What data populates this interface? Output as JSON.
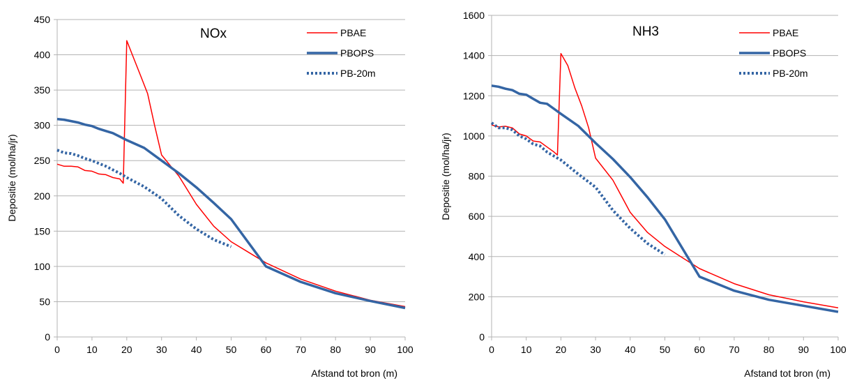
{
  "chart_data": [
    {
      "type": "line",
      "title": "NOx",
      "xlabel": "Afstand tot bron (m)",
      "ylabel": "Depositie (mol/ha/jr)",
      "xlim": [
        0,
        100
      ],
      "ylim": [
        0,
        450
      ],
      "xticks": [
        0,
        10,
        20,
        30,
        40,
        50,
        60,
        70,
        80,
        90,
        100
      ],
      "yticks": [
        0,
        50,
        100,
        150,
        200,
        250,
        300,
        350,
        400,
        450
      ],
      "grid": "horizontal",
      "legend": "top-right",
      "series": [
        {
          "name": "PBAE",
          "color": "#ff0000",
          "style": "solid-thin",
          "x": [
            0,
            2,
            4,
            6,
            8,
            10,
            12,
            14,
            16,
            18,
            19,
            20,
            22,
            24,
            26,
            28,
            30,
            35,
            40,
            45,
            50,
            55,
            60,
            70,
            80,
            90,
            100
          ],
          "y": [
            245,
            242,
            242,
            241,
            236,
            235,
            231,
            230,
            226,
            224,
            218,
            420,
            395,
            370,
            345,
            300,
            258,
            228,
            188,
            157,
            135,
            120,
            105,
            82,
            65,
            52,
            43
          ]
        },
        {
          "name": "PBOPS",
          "color": "#3465a4",
          "style": "solid-thick",
          "x": [
            0,
            2,
            4,
            6,
            8,
            10,
            12,
            14,
            16,
            18,
            20,
            25,
            30,
            35,
            40,
            45,
            50,
            60,
            70,
            80,
            90,
            100
          ],
          "y": [
            309,
            308,
            306,
            304,
            301,
            299,
            295,
            292,
            289,
            284,
            279,
            268,
            250,
            232,
            212,
            190,
            167,
            100,
            78,
            62,
            51,
            41
          ]
        },
        {
          "name": "PB-20m",
          "color": "#3465a4",
          "style": "dotted",
          "x": [
            0,
            2,
            4,
            6,
            8,
            10,
            12,
            14,
            16,
            18,
            20,
            25,
            30,
            35,
            40,
            45,
            50
          ],
          "y": [
            265,
            261,
            260,
            257,
            253,
            250,
            246,
            242,
            237,
            232,
            226,
            213,
            196,
            172,
            153,
            138,
            128
          ]
        }
      ]
    },
    {
      "type": "line",
      "title": "NH3",
      "xlabel": "Afstand tot bron (m)",
      "ylabel": "Depositie (mol/ha/jr)",
      "xlim": [
        0,
        100
      ],
      "ylim": [
        0,
        1600
      ],
      "xticks": [
        0,
        10,
        20,
        30,
        40,
        50,
        60,
        70,
        80,
        90,
        100
      ],
      "yticks": [
        0,
        200,
        400,
        600,
        800,
        1000,
        1200,
        1400,
        1600
      ],
      "grid": "horizontal",
      "legend": "top-right",
      "series": [
        {
          "name": "PBAE",
          "color": "#ff0000",
          "style": "solid-thin",
          "x": [
            0,
            2,
            4,
            6,
            8,
            10,
            12,
            14,
            16,
            18,
            19,
            20,
            22,
            24,
            26,
            28,
            30,
            35,
            40,
            45,
            50,
            55,
            60,
            70,
            80,
            90,
            100
          ],
          "y": [
            1055,
            1045,
            1048,
            1040,
            1010,
            1000,
            975,
            970,
            945,
            920,
            905,
            1410,
            1350,
            1240,
            1150,
            1040,
            890,
            780,
            620,
            520,
            450,
            395,
            340,
            265,
            210,
            175,
            145
          ]
        },
        {
          "name": "PBOPS",
          "color": "#3465a4",
          "style": "solid-thick",
          "x": [
            0,
            2,
            4,
            6,
            8,
            10,
            12,
            14,
            16,
            18,
            20,
            25,
            30,
            35,
            40,
            45,
            50,
            60,
            70,
            80,
            90,
            100
          ],
          "y": [
            1250,
            1245,
            1235,
            1228,
            1210,
            1205,
            1185,
            1165,
            1160,
            1135,
            1110,
            1050,
            965,
            885,
            795,
            695,
            585,
            300,
            230,
            185,
            155,
            125
          ]
        },
        {
          "name": "PB-20m",
          "color": "#3465a4",
          "style": "dotted",
          "x": [
            0,
            2,
            4,
            6,
            8,
            10,
            12,
            14,
            16,
            18,
            20,
            25,
            30,
            35,
            40,
            45,
            50
          ],
          "y": [
            1065,
            1040,
            1040,
            1030,
            1000,
            985,
            960,
            950,
            920,
            900,
            880,
            810,
            745,
            630,
            540,
            465,
            410
          ]
        }
      ]
    }
  ]
}
